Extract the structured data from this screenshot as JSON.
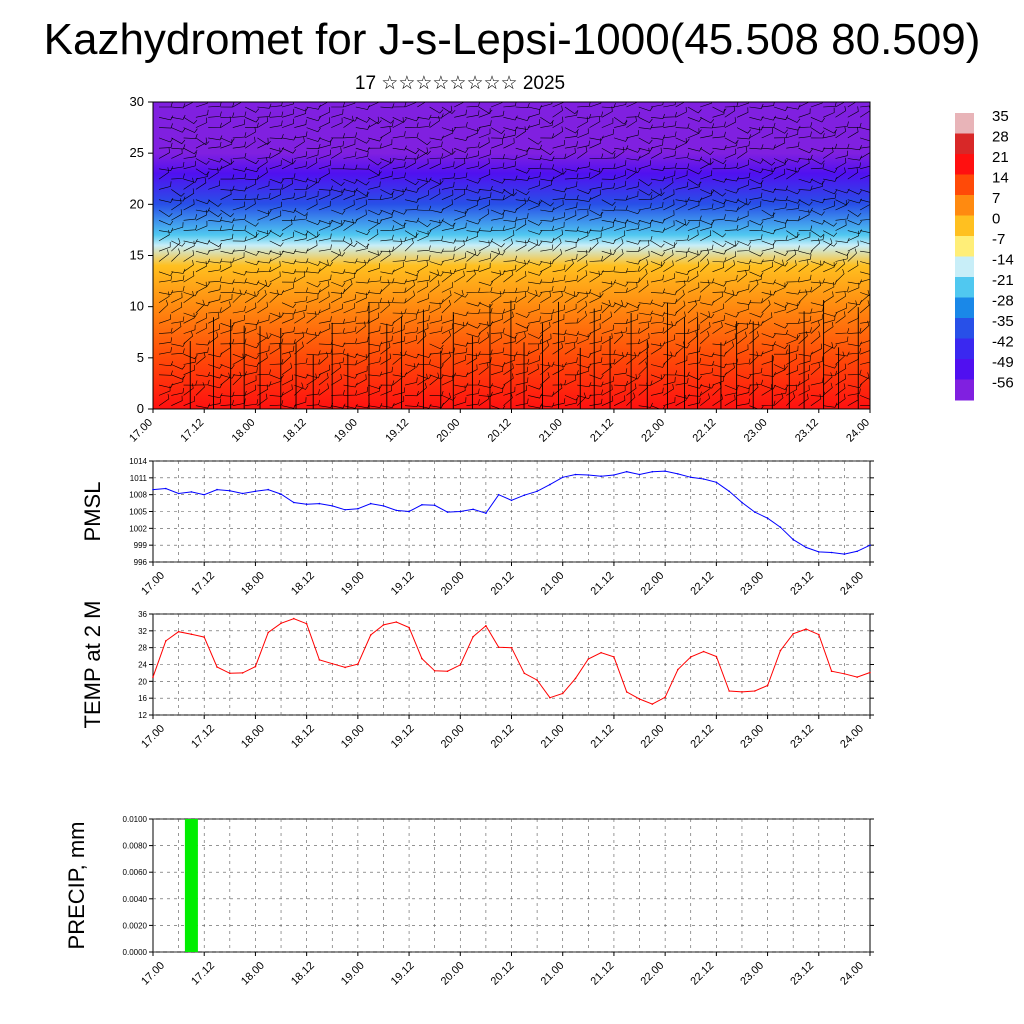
{
  "header": {
    "title": "Kazhydromet for J-s-Lepsi-1000(45.508 80.509)",
    "subtitle": "17 ☆☆☆☆☆☆☆☆ 2025"
  },
  "chart_data": [
    {
      "type": "heatmap",
      "title": "",
      "xlabel": "",
      "ylabel": "",
      "x_tick_labels": [
        "17.00",
        "17.12",
        "18.00",
        "18.12",
        "19.00",
        "19.12",
        "20.00",
        "20.12",
        "21.00",
        "21.12",
        "22.00",
        "22.12",
        "23.00",
        "23.12",
        "24.00"
      ],
      "y_ticks": [
        0,
        5,
        10,
        15,
        20,
        25,
        30
      ],
      "ylim": [
        0,
        30
      ],
      "overlay": "wind barbs",
      "colorbar": {
        "labels": [
          "35",
          "28",
          "21",
          "14",
          "7",
          "0",
          "-7",
          "-14",
          "-21",
          "-28",
          "-35",
          "-42",
          "-49",
          "-56"
        ],
        "colors": [
          "#e8b4b8",
          "#d82828",
          "#ff1010",
          "#ff4a08",
          "#ff8a10",
          "#ffc020",
          "#ffee78",
          "#c8eef8",
          "#50c8f0",
          "#1a88e8",
          "#2850e8",
          "#3a28f0",
          "#5010f0",
          "#8020e0"
        ]
      },
      "profile": [
        {
          "level": 0,
          "value": 25
        },
        {
          "level": 5,
          "value": 20
        },
        {
          "level": 10,
          "value": 8
        },
        {
          "level": 14,
          "value": 0
        },
        {
          "level": 16,
          "value": -8
        },
        {
          "level": 17,
          "value": -18
        },
        {
          "level": 20,
          "value": -30
        },
        {
          "level": 23,
          "value": -45
        },
        {
          "level": 25,
          "value": -55
        },
        {
          "level": 30,
          "value": -60
        }
      ]
    },
    {
      "type": "line",
      "ylabel": "PMSL",
      "ylim": [
        996,
        1014
      ],
      "y_ticks": [
        996,
        999,
        1002,
        1005,
        1008,
        1011,
        1014
      ],
      "x_tick_labels": [
        "17.00",
        "17.12",
        "18.00",
        "18.12",
        "19.00",
        "19.12",
        "20.00",
        "20.12",
        "21.00",
        "21.12",
        "22.00",
        "22.12",
        "23.00",
        "23.12",
        "24.00"
      ],
      "color": "#0000ff",
      "x": [
        0,
        3,
        6,
        9,
        12,
        15,
        18,
        21,
        24,
        27,
        30,
        33,
        36,
        39,
        42,
        45,
        48,
        51,
        54,
        57,
        60,
        63,
        66,
        69,
        72,
        75,
        78,
        81,
        84,
        87,
        90,
        93,
        96,
        99,
        102,
        105,
        108,
        111,
        114,
        117,
        120,
        123,
        126,
        129,
        132,
        135,
        138,
        141,
        144,
        147,
        150,
        153,
        156,
        159,
        162,
        165,
        168
      ],
      "values": [
        1008.9,
        1009.1,
        1008.2,
        1008.5,
        1008.0,
        1008.9,
        1008.7,
        1008.2,
        1008.6,
        1008.9,
        1008.1,
        1006.6,
        1006.3,
        1006.4,
        1006.0,
        1005.3,
        1005.5,
        1006.4,
        1006.0,
        1005.2,
        1005.0,
        1006.2,
        1006.1,
        1004.9,
        1005.0,
        1005.4,
        1004.7,
        1008.0,
        1007.0,
        1007.9,
        1008.6,
        1009.8,
        1011.1,
        1011.6,
        1011.5,
        1011.3,
        1011.5,
        1012.1,
        1011.6,
        1012.1,
        1012.2,
        1011.7,
        1011.1,
        1010.8,
        1010.2,
        1008.6,
        1006.6,
        1004.9,
        1003.8,
        1002.2,
        1000.0,
        998.6,
        997.8,
        997.7,
        997.4,
        997.9,
        999.0
      ]
    },
    {
      "type": "line",
      "ylabel": "TEMP at 2 M",
      "ylim": [
        12,
        36
      ],
      "y_ticks": [
        12,
        16,
        20,
        24,
        28,
        32,
        36
      ],
      "x_tick_labels": [
        "17.00",
        "17.12",
        "18.00",
        "18.12",
        "19.00",
        "19.12",
        "20.00",
        "20.12",
        "21.00",
        "21.12",
        "22.00",
        "22.12",
        "23.00",
        "23.12",
        "24.00"
      ],
      "color": "#ff0000",
      "x": [
        0,
        3,
        6,
        9,
        12,
        15,
        18,
        21,
        24,
        27,
        30,
        33,
        36,
        39,
        42,
        45,
        48,
        51,
        54,
        57,
        60,
        63,
        66,
        69,
        72,
        75,
        78,
        81,
        84,
        87,
        90,
        93,
        96,
        99,
        102,
        105,
        108,
        111,
        114,
        117,
        120,
        123,
        126,
        129,
        132,
        135,
        138,
        141,
        144,
        147,
        150,
        153,
        156,
        159,
        162,
        165,
        168
      ],
      "values": [
        21.0,
        29.6,
        31.8,
        31.2,
        30.5,
        23.4,
        21.9,
        22.0,
        23.5,
        31.6,
        33.8,
        34.9,
        33.7,
        25.1,
        24.2,
        23.3,
        24.1,
        31.0,
        33.4,
        34.1,
        32.8,
        25.4,
        22.5,
        22.4,
        23.9,
        30.6,
        33.2,
        28.1,
        28.0,
        21.9,
        20.3,
        16.1,
        17.1,
        20.7,
        25.3,
        26.8,
        25.8,
        17.5,
        15.8,
        14.6,
        16.2,
        22.8,
        25.8,
        27.1,
        25.9,
        17.7,
        17.5,
        17.7,
        19.0,
        27.3,
        31.3,
        32.4,
        31.1,
        22.4,
        21.8,
        21.0,
        22.1
      ]
    },
    {
      "type": "bar",
      "ylabel": "PRECIP, mm",
      "ylim": [
        0.0,
        0.01
      ],
      "y_tick_labels": [
        "0.0000",
        "0.0020",
        "0.0040",
        "0.0060",
        "0.0080",
        "0.0100"
      ],
      "x_tick_labels": [
        "17.00",
        "17.12",
        "18.00",
        "18.12",
        "19.00",
        "19.12",
        "20.00",
        "20.12",
        "21.00",
        "21.12",
        "22.00",
        "22.12",
        "23.00",
        "23.12",
        "24.00"
      ],
      "color": "#00ee00",
      "x": [
        9
      ],
      "values": [
        0.01
      ]
    }
  ]
}
